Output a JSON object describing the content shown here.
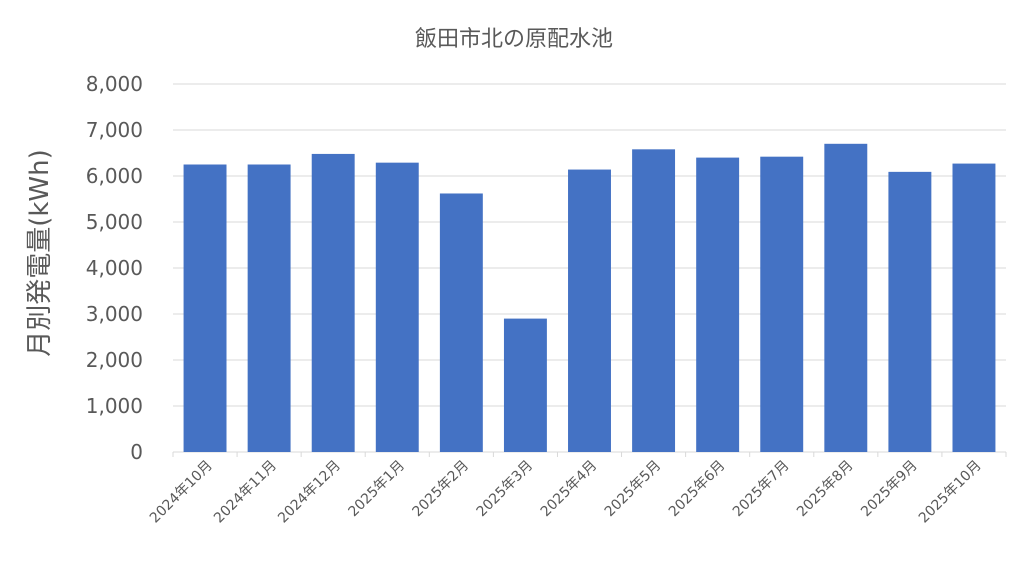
{
  "chart_data": {
    "type": "bar",
    "title": "飯田市北の原配水池",
    "xlabel": "",
    "ylabel": "月別発電量(kWh)",
    "categories": [
      "2024年10月",
      "2024年11月",
      "2024年12月",
      "2025年1月",
      "2025年2月",
      "2025年3月",
      "2025年4月",
      "2025年5月",
      "2025年6月",
      "2025年7月",
      "2025年8月",
      "2025年9月",
      "2025年10月"
    ],
    "values": [
      6250,
      6250,
      6480,
      6290,
      5620,
      2900,
      6140,
      6580,
      6400,
      6420,
      6700,
      6090,
      6270
    ],
    "ylim": [
      0,
      8000
    ],
    "yticks": [
      "0",
      "1,000",
      "2,000",
      "3,000",
      "4,000",
      "5,000",
      "6,000",
      "7,000",
      "8,000"
    ],
    "grid": true,
    "legend": "none",
    "bar_color": "#4472c4"
  }
}
